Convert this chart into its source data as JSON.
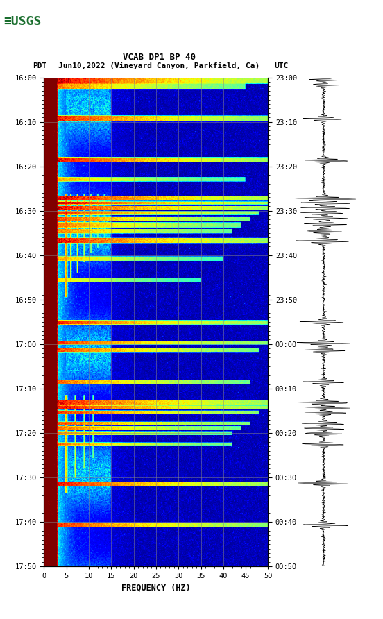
{
  "title_line1": "VCAB DP1 BP 40",
  "title_line2_left": "PDT",
  "title_line2_mid": "Jun10,2022 (Vineyard Canyon, Parkfield, Ca)",
  "title_line2_right": "UTC",
  "xlabel": "FREQUENCY (HZ)",
  "freq_min": 0,
  "freq_max": 50,
  "freq_ticks": [
    0,
    5,
    10,
    15,
    20,
    25,
    30,
    35,
    40,
    45,
    50
  ],
  "left_time_labels": [
    "16:00",
    "16:10",
    "16:20",
    "16:30",
    "16:40",
    "16:50",
    "17:00",
    "17:10",
    "17:20",
    "17:30",
    "17:40",
    "17:50"
  ],
  "right_time_labels": [
    "23:00",
    "23:10",
    "23:20",
    "23:30",
    "23:40",
    "23:50",
    "00:00",
    "00:10",
    "00:20",
    "00:30",
    "00:40",
    "00:50"
  ],
  "background_color": "#ffffff",
  "colormap": "jet",
  "grid_color": "#888888",
  "grid_alpha": 0.6,
  "grid_freq_positions": [
    5,
    10,
    15,
    20,
    25,
    30,
    35,
    40,
    45
  ],
  "fig_width": 5.52,
  "fig_height": 8.92,
  "n_time": 660,
  "n_freq": 500
}
